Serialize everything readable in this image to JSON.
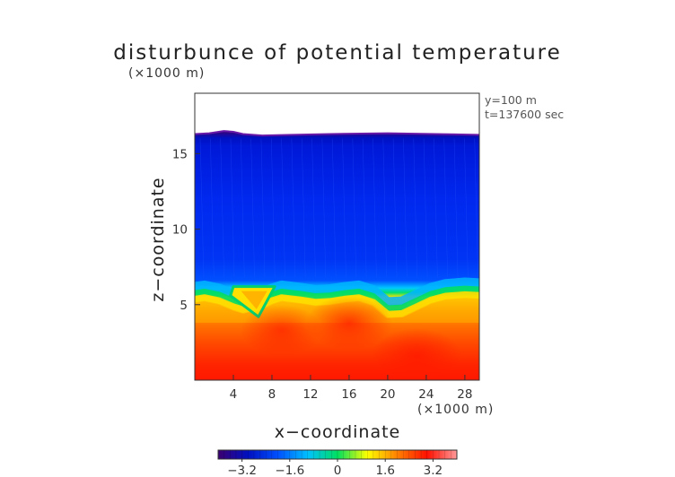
{
  "chart_data": {
    "type": "heatmap",
    "title": "disturbunce of potential temperature",
    "xlabel": "x−coordinate",
    "ylabel": "z−coordinate",
    "x_scale_note": "(×1000 m)",
    "z_scale_note": "(×1000 m)",
    "info": [
      "y=100 m",
      "t=137600 sec"
    ],
    "x_ticks": [
      4,
      8,
      12,
      16,
      20,
      24,
      28
    ],
    "z_ticks": [
      5,
      10,
      15
    ],
    "xlim": [
      0,
      29.5
    ],
    "zlim": [
      0,
      19
    ],
    "value_range": [
      -4.0,
      4.0
    ],
    "colorbar_ticks": [
      -3.2,
      -1.6,
      0,
      1.6,
      3.2
    ],
    "colorbar_labels": [
      "−3.2",
      "−1.6",
      "0",
      "1.6",
      "3.2"
    ],
    "colormap": [
      "#3b0070",
      "#0010c0",
      "#0050ff",
      "#00c0ff",
      "#00e060",
      "#ffff00",
      "#ff8000",
      "#ff1000",
      "#ff9999"
    ],
    "data_top_profile": {
      "x": [
        0,
        1.5,
        3,
        4,
        5,
        7,
        10,
        14,
        20,
        25,
        29.5
      ],
      "z": [
        16.3,
        16.35,
        16.5,
        16.45,
        16.3,
        16.2,
        16.25,
        16.3,
        16.35,
        16.3,
        16.25
      ]
    },
    "transition_profile": {
      "x": [
        0,
        1,
        2.5,
        4,
        5,
        7,
        8,
        9,
        11,
        12.5,
        14,
        15.5,
        17,
        18.5,
        20,
        21.5,
        23,
        24.5,
        26,
        28,
        29.5
      ],
      "z": [
        5.3,
        5.4,
        5.2,
        4.8,
        4.6,
        4.9,
        5.2,
        5.4,
        5.25,
        5.1,
        5.15,
        5.3,
        5.4,
        5.1,
        4.3,
        4.35,
        4.8,
        5.25,
        5.5,
        5.6,
        5.55
      ]
    },
    "cold_notch": {
      "x": [
        4,
        8.3
      ],
      "z_top": 6.2,
      "z_tip": 4.2,
      "tip_x": 6.2
    },
    "warm_cores": [
      {
        "x": 16,
        "z": 3.8,
        "value": 3.0
      },
      {
        "x": 23,
        "z": 1.6,
        "value": 3.3
      },
      {
        "x": 9,
        "z": 3.3,
        "value": 2.6
      }
    ],
    "grid": false
  }
}
